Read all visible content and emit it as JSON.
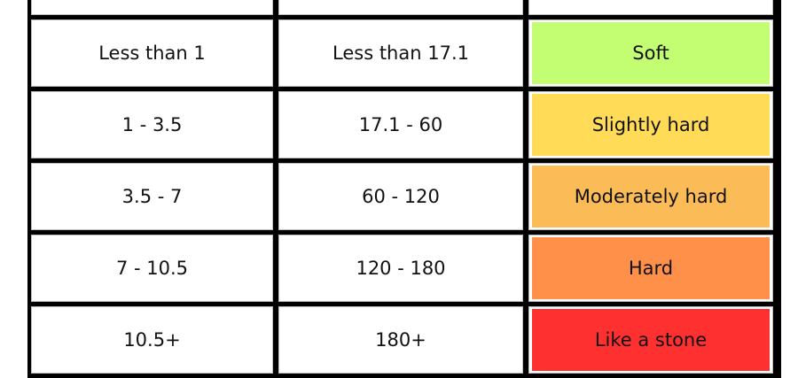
{
  "rows": [
    {
      "col1": "Less than 1",
      "col2": "Less than 17.1",
      "label": "Soft",
      "color": "#c3fd72"
    },
    {
      "col1": "1 - 3.5",
      "col2": "17.1 - 60",
      "label": "Slightly hard",
      "color": "#ffdb58"
    },
    {
      "col1": "3.5 - 7",
      "col2": "60 - 120",
      "label": "Moderately hard",
      "color": "#fbbc58"
    },
    {
      "col1": "7 - 10.5",
      "col2": "120 - 180",
      "label": "Hard",
      "color": "#ff9049"
    },
    {
      "col1": "10.5+",
      "col2": "180+",
      "label": "Like a stone",
      "color": "#ff3030"
    }
  ]
}
